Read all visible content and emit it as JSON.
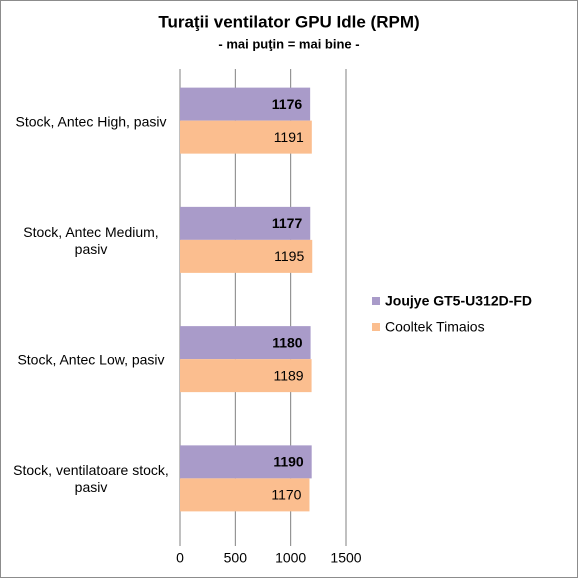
{
  "chart_data": {
    "type": "bar",
    "title": "Turaţii ventilator GPU Idle (RPM)",
    "subtitle": "- mai puţin = mai bine -",
    "categories": [
      "Stock, Antec High, pasiv",
      "Stock, Antec Medium, pasiv",
      "Stock, Antec Low, pasiv",
      "Stock, ventilatoare stock, pasiv"
    ],
    "series": [
      {
        "name": "Joujye GT5-U312D-FD",
        "color": "#a99bc9",
        "values": [
          1176,
          1177,
          1180,
          1190
        ]
      },
      {
        "name": "Cooltek Timaios",
        "color": "#fbbe8f",
        "values": [
          1191,
          1195,
          1189,
          1170
        ]
      }
    ],
    "xlim": [
      0,
      1500
    ],
    "xticks": [
      0,
      500,
      1000,
      1500
    ],
    "grid": true
  }
}
